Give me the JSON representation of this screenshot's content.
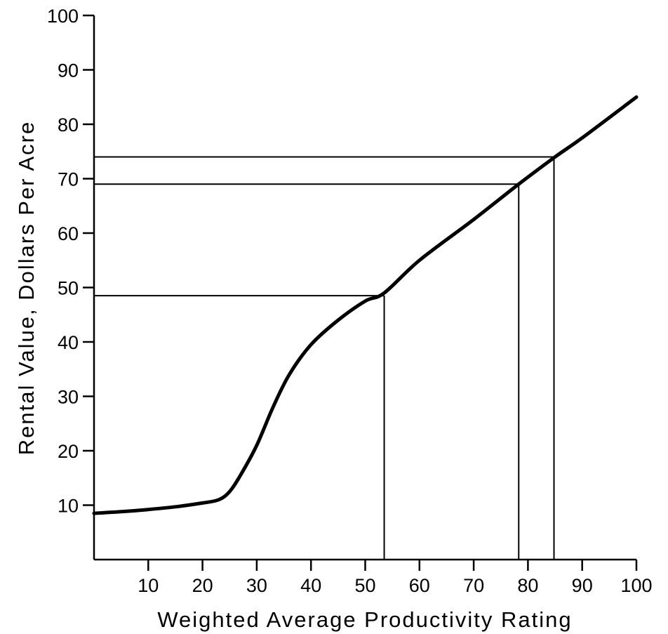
{
  "chart_data": {
    "type": "line",
    "title": "",
    "xlabel": "Weighted Average Productivity Rating",
    "ylabel": "Rental Value,  Dollars Per Acre",
    "xlim": [
      0,
      100
    ],
    "ylim": [
      0,
      100
    ],
    "x_ticks": [
      10,
      20,
      30,
      40,
      50,
      60,
      70,
      80,
      90,
      100
    ],
    "y_ticks": [
      10,
      20,
      30,
      40,
      50,
      60,
      70,
      80,
      90,
      100
    ],
    "grid": false,
    "series": [
      {
        "x": [
          0,
          5,
          10,
          15,
          20,
          23,
          25,
          27,
          30,
          33,
          36,
          40,
          45,
          50,
          53.5,
          60,
          70,
          78.3,
          85,
          90,
          100
        ],
        "y": [
          8.5,
          8.8,
          9.2,
          9.7,
          10.4,
          11,
          12.5,
          15.5,
          21,
          28,
          34,
          39.5,
          44,
          47.5,
          49,
          55,
          62.5,
          69,
          74,
          77.5,
          85
        ]
      }
    ],
    "reference_points": [
      {
        "x": 53.5,
        "y": 48.5
      },
      {
        "x": 78.3,
        "y": 69
      },
      {
        "x": 84.8,
        "y": 74
      }
    ]
  }
}
